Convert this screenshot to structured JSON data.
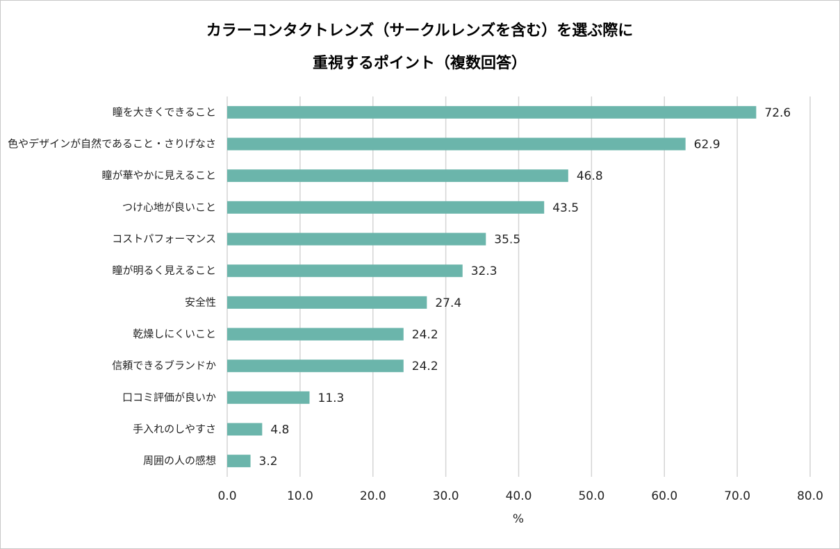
{
  "chart_data": {
    "type": "bar",
    "orientation": "horizontal",
    "title": [
      "カラーコンタクトレンズ（サークルレンズを含む）を選ぶ際に",
      "重視するポイント（複数回答）"
    ],
    "x_label": "%",
    "categories": [
      "瞳を大きくできること",
      "色やデザインが自然であること・さりげなさ",
      "瞳が華やかに見えること",
      "つけ心地が良いこと",
      "コストパフォーマンス",
      "瞳が明るく見えること",
      "安全性",
      "乾燥しにくいこと",
      "信頼できるブランドか",
      "口コミ評価が良いか",
      "手入れのしやすさ",
      "周囲の人の感想"
    ],
    "values": [
      72.6,
      62.9,
      46.8,
      43.5,
      35.5,
      32.3,
      27.4,
      24.2,
      24.2,
      11.3,
      4.8,
      3.2
    ],
    "color": "#6bb5ab",
    "xlim": [
      0,
      80
    ],
    "xticks": [
      {
        "value": 0,
        "label": "0.0"
      },
      {
        "value": 10,
        "label": "10.0"
      },
      {
        "value": 20,
        "label": "20.0"
      },
      {
        "value": 30,
        "label": "30.0"
      },
      {
        "value": 40,
        "label": "40.0"
      },
      {
        "value": 50,
        "label": "50.0"
      },
      {
        "value": 60,
        "label": "60.0"
      },
      {
        "value": 70,
        "label": "70.0"
      },
      {
        "value": 80,
        "label": "80.0"
      }
    ],
    "grid": true
  }
}
